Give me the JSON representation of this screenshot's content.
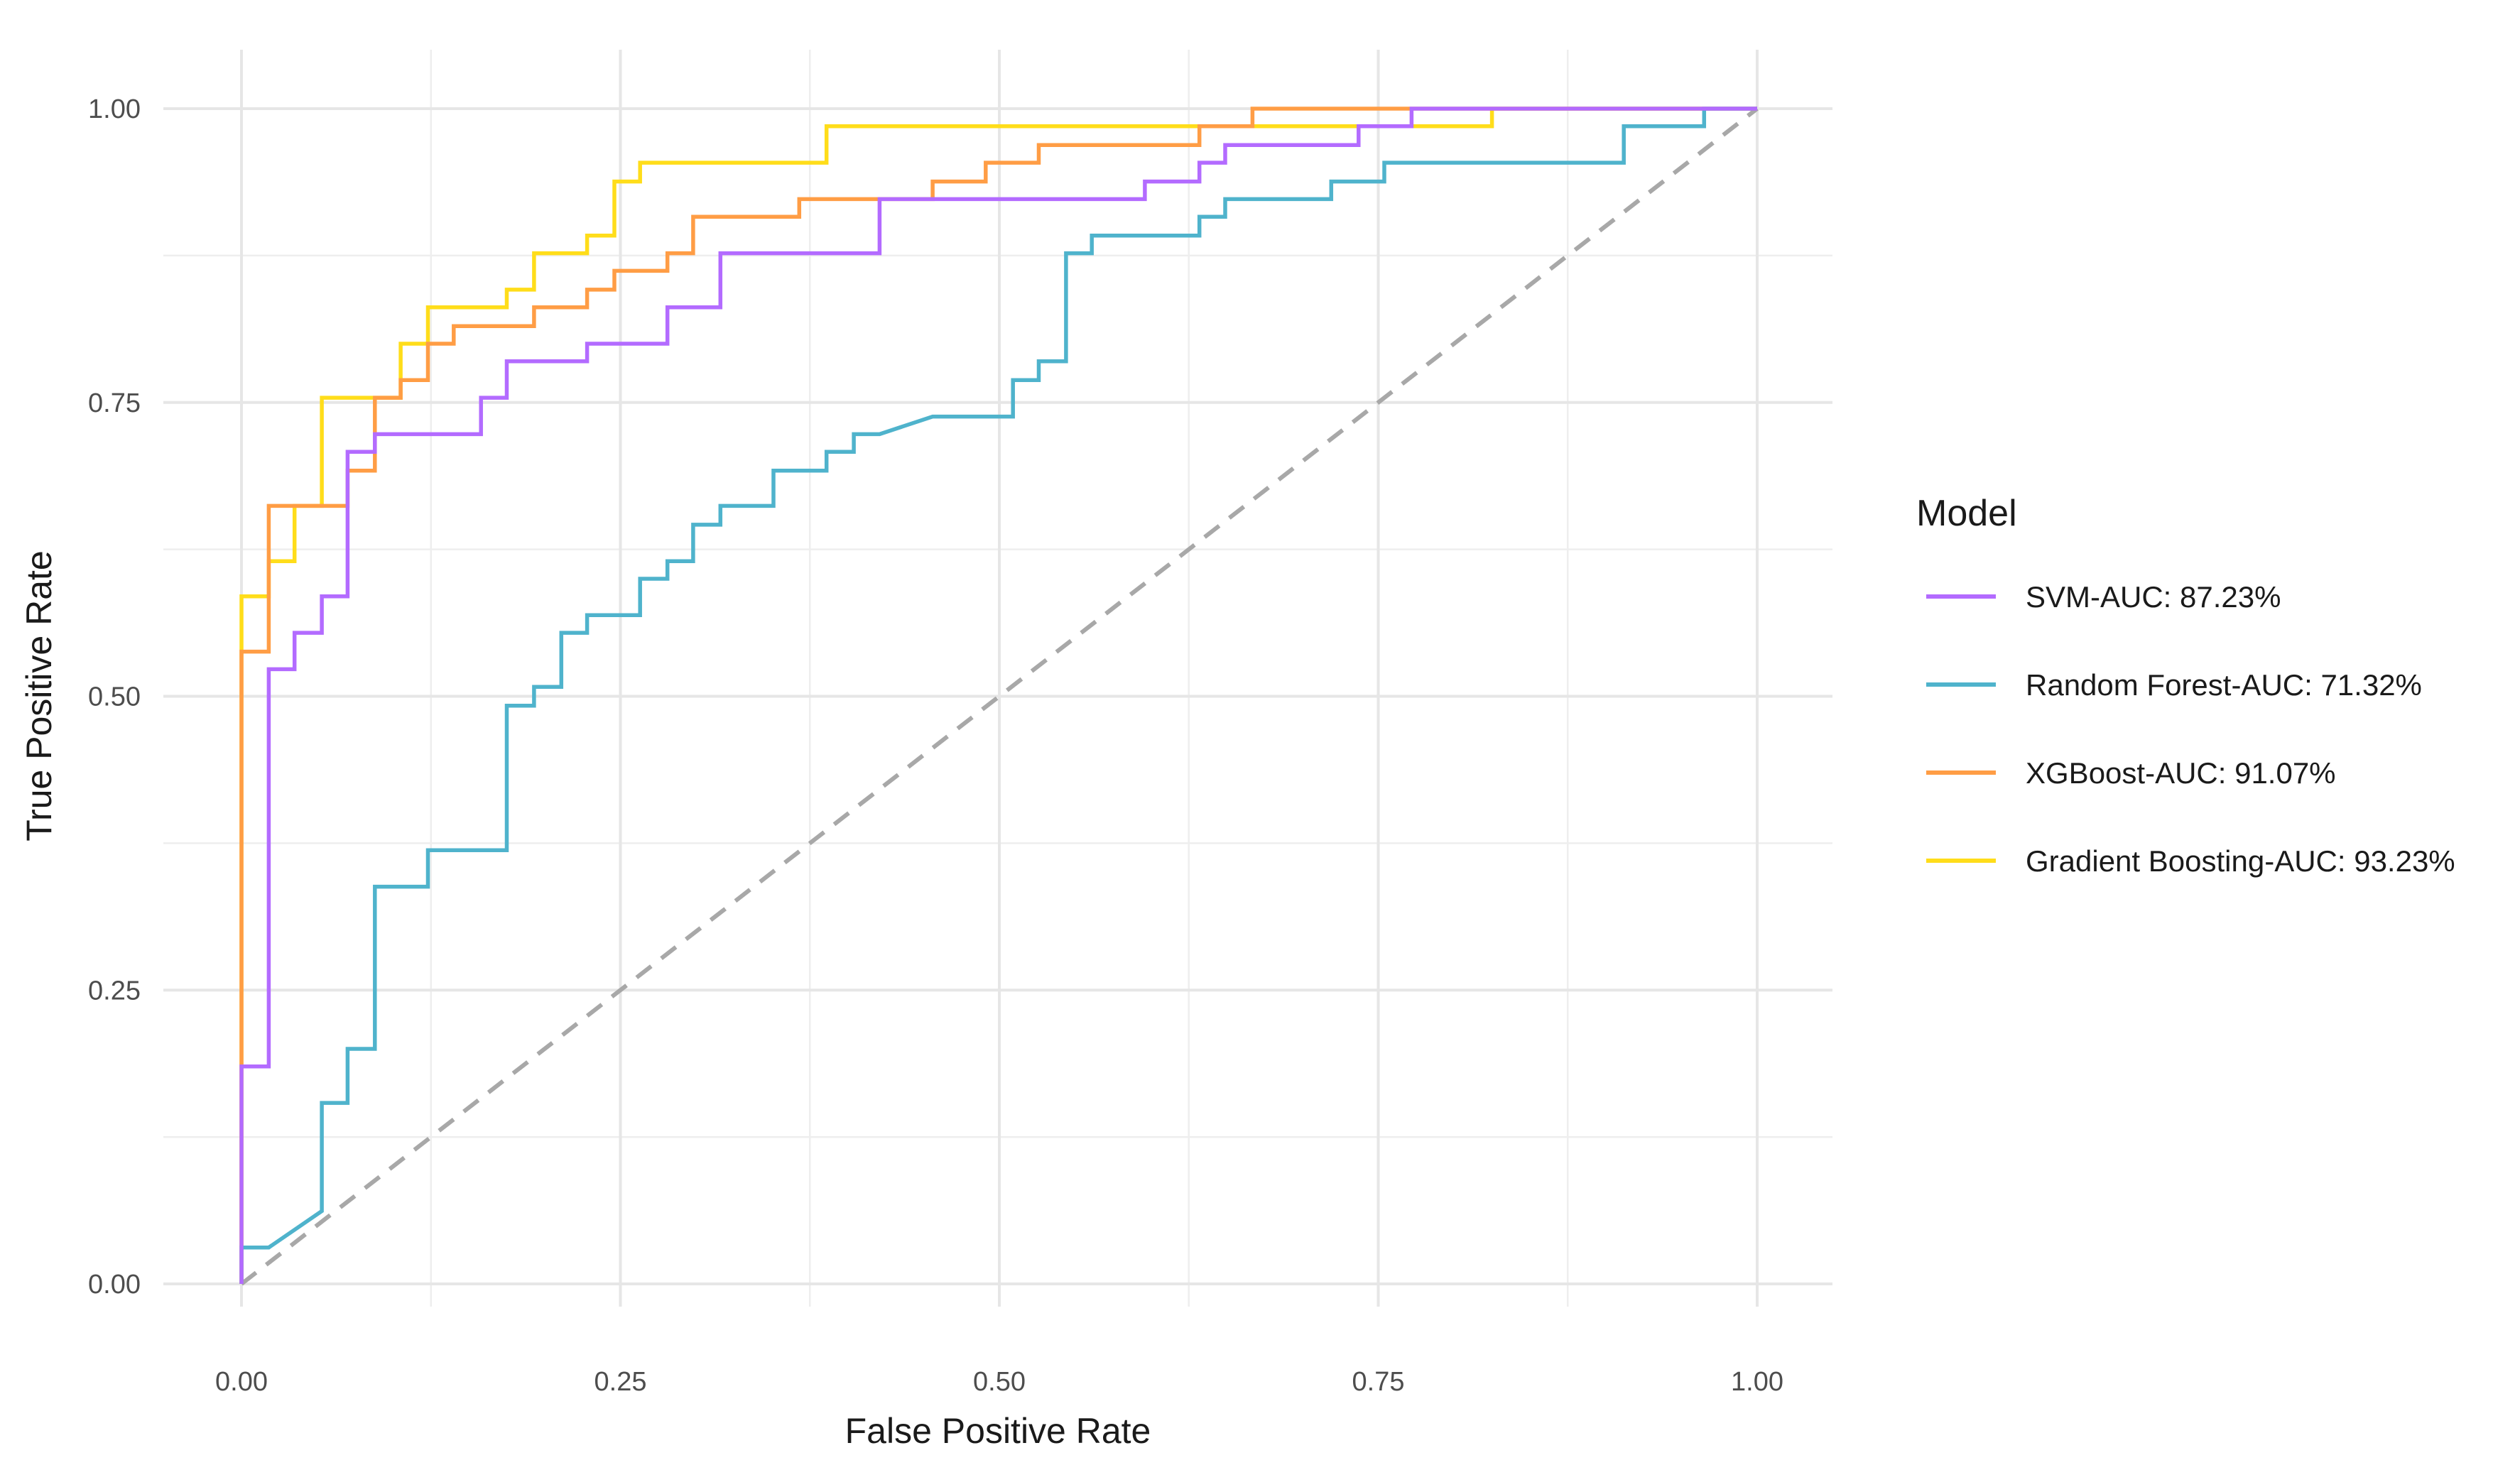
{
  "chart_data": {
    "type": "line",
    "title": "",
    "xlabel": "False Positive Rate",
    "ylabel": "True Positive Rate",
    "xlim": [
      0,
      1
    ],
    "ylim": [
      0,
      1
    ],
    "grid": true,
    "x_ticks": [
      0,
      0.25,
      0.5,
      0.75,
      1
    ],
    "x_tick_labels": [
      "0.00",
      "0.25",
      "0.50",
      "0.75",
      "1.00"
    ],
    "y_ticks": [
      0,
      0.25,
      0.5,
      0.75,
      1
    ],
    "y_tick_labels": [
      "0.00",
      "0.25",
      "0.50",
      "0.75",
      "1.00"
    ],
    "reference_line": {
      "x": [
        0,
        1
      ],
      "y": [
        0,
        1
      ],
      "style": "dashed",
      "color": "#a8a8a8"
    },
    "legend": {
      "title": "Model",
      "placement": "right"
    },
    "series": [
      {
        "name": "SVM-AUC: 87.23%",
        "color": "#b36bff",
        "x": [
          0,
          0,
          0.018,
          0.018,
          0.035,
          0.035,
          0.053,
          0.053,
          0.07,
          0.07,
          0.088,
          0.088,
          0.105,
          0.105,
          0.158,
          0.158,
          0.175,
          0.175,
          0.228,
          0.228,
          0.281,
          0.281,
          0.316,
          0.316,
          0.421,
          0.421,
          0.596,
          0.596,
          0.632,
          0.632,
          0.649,
          0.649,
          0.737,
          0.737,
          0.772,
          0.772,
          1
        ],
        "y": [
          0,
          0.185,
          0.185,
          0.523,
          0.523,
          0.554,
          0.554,
          0.585,
          0.585,
          0.708,
          0.708,
          0.723,
          0.723,
          0.723,
          0.723,
          0.754,
          0.754,
          0.785,
          0.785,
          0.8,
          0.8,
          0.831,
          0.831,
          0.877,
          0.877,
          0.923,
          0.923,
          0.938,
          0.938,
          0.954,
          0.954,
          0.969,
          0.969,
          0.985,
          0.985,
          1,
          1
        ]
      },
      {
        "name": "Random Forest-AUC: 71.32%",
        "color": "#4fb3cc",
        "x": [
          0,
          0,
          0.018,
          0.053,
          0.053,
          0.07,
          0.07,
          0.088,
          0.088,
          0.123,
          0.123,
          0.175,
          0.175,
          0.193,
          0.193,
          0.211,
          0.211,
          0.228,
          0.228,
          0.263,
          0.263,
          0.281,
          0.281,
          0.298,
          0.298,
          0.316,
          0.316,
          0.351,
          0.351,
          0.386,
          0.386,
          0.404,
          0.404,
          0.421,
          0.421,
          0.456,
          0.509,
          0.509,
          0.526,
          0.526,
          0.544,
          0.544,
          0.561,
          0.561,
          0.632,
          0.632,
          0.649,
          0.649,
          0.719,
          0.719,
          0.754,
          0.754,
          0.912,
          0.912,
          0.965,
          0.965,
          1
        ],
        "y": [
          0,
          0.031,
          0.031,
          0.062,
          0.154,
          0.154,
          0.2,
          0.2,
          0.338,
          0.338,
          0.369,
          0.369,
          0.492,
          0.492,
          0.508,
          0.508,
          0.554,
          0.554,
          0.569,
          0.569,
          0.6,
          0.6,
          0.615,
          0.615,
          0.646,
          0.646,
          0.662,
          0.662,
          0.692,
          0.692,
          0.708,
          0.708,
          0.723,
          0.723,
          0.723,
          0.738,
          0.738,
          0.769,
          0.769,
          0.785,
          0.785,
          0.877,
          0.877,
          0.892,
          0.892,
          0.908,
          0.908,
          0.923,
          0.923,
          0.938,
          0.938,
          0.954,
          0.954,
          0.985,
          0.985,
          1,
          1
        ]
      },
      {
        "name": "XGBoost-AUC: 91.07%",
        "color": "#ff9d45",
        "x": [
          0,
          0,
          0.018,
          0.018,
          0.07,
          0.07,
          0.088,
          0.088,
          0.105,
          0.105,
          0.123,
          0.123,
          0.14,
          0.14,
          0.193,
          0.193,
          0.228,
          0.228,
          0.246,
          0.246,
          0.281,
          0.281,
          0.298,
          0.298,
          0.368,
          0.368,
          0.456,
          0.456,
          0.491,
          0.491,
          0.526,
          0.526,
          0.632,
          0.632,
          0.667,
          0.667,
          1
        ],
        "y": [
          0,
          0.538,
          0.538,
          0.662,
          0.662,
          0.692,
          0.692,
          0.754,
          0.754,
          0.769,
          0.769,
          0.8,
          0.8,
          0.815,
          0.815,
          0.831,
          0.831,
          0.846,
          0.846,
          0.862,
          0.862,
          0.877,
          0.877,
          0.908,
          0.908,
          0.923,
          0.923,
          0.938,
          0.938,
          0.954,
          0.954,
          0.969,
          0.969,
          0.985,
          0.985,
          1,
          1
        ]
      },
      {
        "name": "Gradient Boosting-AUC: 93.23%",
        "color": "#ffdd1a",
        "x": [
          0,
          0,
          0.018,
          0.018,
          0.035,
          0.035,
          0.053,
          0.053,
          0.105,
          0.105,
          0.123,
          0.123,
          0.175,
          0.175,
          0.193,
          0.193,
          0.228,
          0.228,
          0.246,
          0.246,
          0.263,
          0.263,
          0.386,
          0.386,
          0.825,
          0.825,
          1
        ],
        "y": [
          0,
          0.585,
          0.585,
          0.615,
          0.615,
          0.662,
          0.662,
          0.754,
          0.754,
          0.8,
          0.8,
          0.831,
          0.831,
          0.846,
          0.846,
          0.877,
          0.877,
          0.892,
          0.892,
          0.938,
          0.938,
          0.954,
          0.954,
          0.985,
          0.985,
          1,
          1
        ]
      }
    ]
  }
}
